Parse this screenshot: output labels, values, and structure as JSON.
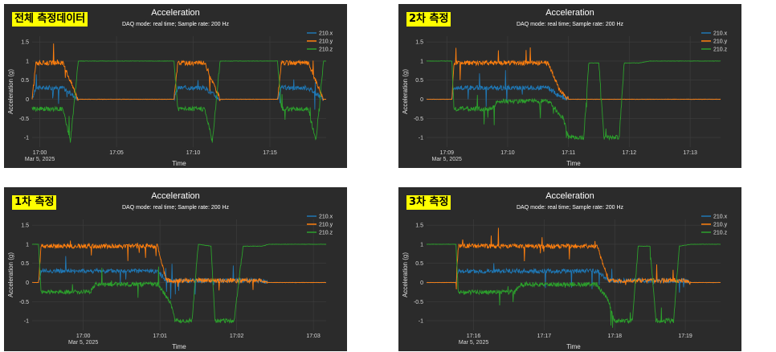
{
  "colors": {
    "x": "#1f77b4",
    "y": "#ff7f0e",
    "z": "#2ca02c",
    "panel_bg": "#2b2b2b",
    "tag_bg": "#ffff00"
  },
  "panels": [
    {
      "tag": "전체 측정데이터",
      "title": "Acceleration",
      "subtitle": "DAQ mode: real time; Sample rate: 200 Hz",
      "xlabel": "Time",
      "ylabel": "Acceleration (g)",
      "date_label": "Mar 5, 2025",
      "xticks": [
        "17:00",
        "17:05",
        "17:10",
        "17:15"
      ],
      "yticks": [
        "1.5",
        "1",
        "0.5",
        "0",
        "-0.5",
        "-1"
      ],
      "legend": [
        "210.x",
        "210.y",
        "210.z"
      ]
    },
    {
      "tag": "2차 측정",
      "title": "Acceleration",
      "subtitle": "DAQ mode: real time; Sample rate: 200 Hz",
      "xlabel": "Time",
      "ylabel": "Acceleration (g)",
      "date_label": "Mar 5, 2025",
      "xticks": [
        "17:09",
        "17:10",
        "17:11",
        "17:12",
        "17:13"
      ],
      "yticks": [
        "1.5",
        "1",
        "0.5",
        "0",
        "-0.5",
        "-1"
      ],
      "legend": [
        "210.x",
        "210.y",
        "210.z"
      ]
    },
    {
      "tag": "1차 측정",
      "title": "Acceleration",
      "subtitle": "DAQ mode: real time; Sample rate: 200 Hz",
      "xlabel": "Time",
      "ylabel": "Acceleration (g)",
      "date_label": "Mar 5, 2025",
      "xticks": [
        "17:00",
        "17:01",
        "17:02",
        "17:03"
      ],
      "yticks": [
        "1.5",
        "1",
        "0.5",
        "0",
        "-0.5",
        "-1"
      ],
      "legend": [
        "210.x",
        "210.y",
        "210.z"
      ]
    },
    {
      "tag": "3차 측정",
      "title": "Acceleration",
      "subtitle": "DAQ mode: real time; Sample rate: 200 Hz",
      "xlabel": "Time",
      "ylabel": "Acceleration (g)",
      "date_label": "Mar 5, 2025",
      "xticks": [
        "17:16",
        "17:17",
        "17:18",
        "17:19"
      ],
      "yticks": [
        "1.5",
        "1",
        "0.5",
        "0",
        "-0.5",
        "-1"
      ],
      "legend": [
        "210.x",
        "210.y",
        "210.z"
      ]
    }
  ],
  "chart_data": [
    {
      "type": "line",
      "title": "Acceleration",
      "xlabel": "Time",
      "ylabel": "Acceleration (g)",
      "ylim": [
        -1.25,
        1.65
      ],
      "x_range": [
        "16:59:30",
        "17:18:40"
      ],
      "grid": true,
      "legend_position": "top-right",
      "series": [
        {
          "name": "210.x",
          "points": [
            [
              "16:59:30",
              0.0
            ],
            [
              "16:59:45",
              0.3
            ],
            [
              "17:01:30",
              0.3
            ],
            [
              "17:02:30",
              0.0
            ],
            [
              "17:08:45",
              0.0
            ],
            [
              "17:09:00",
              0.3
            ],
            [
              "17:10:45",
              0.3
            ],
            [
              "17:11:45",
              0.0
            ],
            [
              "17:15:30",
              0.0
            ],
            [
              "17:15:45",
              0.3
            ],
            [
              "17:17:30",
              0.3
            ],
            [
              "17:18:30",
              0.0
            ],
            [
              "17:18:40",
              0.0
            ]
          ]
        },
        {
          "name": "210.y",
          "points": [
            [
              "16:59:30",
              0.0
            ],
            [
              "16:59:45",
              0.95
            ],
            [
              "17:01:30",
              0.95
            ],
            [
              "17:02:30",
              0.0
            ],
            [
              "17:08:45",
              0.0
            ],
            [
              "17:09:00",
              0.95
            ],
            [
              "17:10:45",
              0.95
            ],
            [
              "17:11:45",
              0.0
            ],
            [
              "17:15:30",
              0.0
            ],
            [
              "17:15:45",
              0.95
            ],
            [
              "17:17:30",
              0.95
            ],
            [
              "17:18:30",
              0.0
            ],
            [
              "17:18:40",
              0.0
            ]
          ]
        },
        {
          "name": "210.z",
          "points": [
            [
              "16:59:30",
              -0.25
            ],
            [
              "17:01:30",
              -0.25
            ],
            [
              "17:02:00",
              -1.1
            ],
            [
              "17:02:30",
              1.0
            ],
            [
              "17:08:45",
              1.0
            ],
            [
              "17:09:00",
              -0.25
            ],
            [
              "17:10:45",
              -0.25
            ],
            [
              "17:11:15",
              -1.1
            ],
            [
              "17:11:45",
              1.0
            ],
            [
              "17:15:30",
              1.0
            ],
            [
              "17:15:45",
              -0.25
            ],
            [
              "17:17:30",
              -0.25
            ],
            [
              "17:18:00",
              -1.1
            ],
            [
              "17:18:30",
              1.0
            ],
            [
              "17:18:40",
              1.0
            ]
          ]
        }
      ]
    },
    {
      "type": "line",
      "title": "Acceleration",
      "xlabel": "Time",
      "ylabel": "Acceleration (g)",
      "ylim": [
        -1.25,
        1.65
      ],
      "x_range": [
        "17:08:40",
        "17:13:30"
      ],
      "grid": true,
      "legend_position": "top-right",
      "series": [
        {
          "name": "210.x",
          "points": [
            [
              "17:08:40",
              0.0
            ],
            [
              "17:09:05",
              0.0
            ],
            [
              "17:09:07",
              0.3
            ],
            [
              "17:10:40",
              0.3
            ],
            [
              "17:10:50",
              0.1
            ],
            [
              "17:11:00",
              0.0
            ],
            [
              "17:12:10",
              0.0
            ],
            [
              "17:12:20",
              0.0
            ],
            [
              "17:13:30",
              0.0
            ]
          ]
        },
        {
          "name": "210.y",
          "points": [
            [
              "17:08:40",
              0.0
            ],
            [
              "17:09:05",
              0.0
            ],
            [
              "17:09:07",
              0.95
            ],
            [
              "17:10:40",
              0.95
            ],
            [
              "17:10:50",
              0.3
            ],
            [
              "17:11:00",
              0.0
            ],
            [
              "17:12:10",
              0.0
            ],
            [
              "17:12:20",
              0.0
            ],
            [
              "17:13:30",
              0.0
            ]
          ]
        },
        {
          "name": "210.z",
          "points": [
            [
              "17:08:40",
              1.0
            ],
            [
              "17:09:05",
              1.0
            ],
            [
              "17:09:07",
              -0.25
            ],
            [
              "17:09:45",
              -0.25
            ],
            [
              "17:09:50",
              -0.05
            ],
            [
              "17:10:40",
              -0.05
            ],
            [
              "17:10:55",
              -0.5
            ],
            [
              "17:11:00",
              -1.0
            ],
            [
              "17:11:15",
              -1.0
            ],
            [
              "17:11:20",
              0.95
            ],
            [
              "17:11:30",
              0.95
            ],
            [
              "17:11:35",
              -1.0
            ],
            [
              "17:11:50",
              -1.0
            ],
            [
              "17:11:55",
              0.95
            ],
            [
              "17:12:10",
              0.95
            ],
            [
              "17:12:20",
              1.0
            ],
            [
              "17:13:30",
              1.0
            ]
          ]
        }
      ]
    },
    {
      "type": "line",
      "title": "Acceleration",
      "xlabel": "Time",
      "ylabel": "Acceleration (g)",
      "ylim": [
        -1.25,
        1.65
      ],
      "x_range": [
        "16:59:20",
        "17:03:10"
      ],
      "grid": true,
      "legend_position": "top-right",
      "series": [
        {
          "name": "210.x",
          "points": [
            [
              "16:59:20",
              0.0
            ],
            [
              "16:59:25",
              0.0
            ],
            [
              "16:59:27",
              0.3
            ],
            [
              "17:00:58",
              0.3
            ],
            [
              "17:01:05",
              0.05
            ],
            [
              "17:02:20",
              0.05
            ],
            [
              "17:02:25",
              0.0
            ],
            [
              "17:03:10",
              0.0
            ]
          ]
        },
        {
          "name": "210.y",
          "points": [
            [
              "16:59:20",
              0.0
            ],
            [
              "16:59:25",
              0.0
            ],
            [
              "16:59:27",
              0.95
            ],
            [
              "17:00:58",
              0.95
            ],
            [
              "17:01:05",
              0.05
            ],
            [
              "17:02:20",
              0.05
            ],
            [
              "17:02:25",
              0.0
            ],
            [
              "17:03:10",
              0.0
            ]
          ]
        },
        {
          "name": "210.z",
          "points": [
            [
              "16:59:20",
              1.0
            ],
            [
              "16:59:25",
              1.0
            ],
            [
              "16:59:27",
              -0.25
            ],
            [
              "17:00:05",
              -0.25
            ],
            [
              "17:00:10",
              -0.05
            ],
            [
              "17:00:58",
              -0.05
            ],
            [
              "17:01:08",
              -0.5
            ],
            [
              "17:01:12",
              -1.0
            ],
            [
              "17:01:25",
              -1.0
            ],
            [
              "17:01:30",
              1.0
            ],
            [
              "17:01:40",
              0.95
            ],
            [
              "17:01:43",
              -1.0
            ],
            [
              "17:01:58",
              -1.0
            ],
            [
              "17:02:05",
              0.95
            ],
            [
              "17:02:20",
              0.95
            ],
            [
              "17:02:25",
              1.0
            ],
            [
              "17:03:10",
              1.0
            ]
          ]
        }
      ]
    },
    {
      "type": "line",
      "title": "Acceleration",
      "xlabel": "Time",
      "ylabel": "Acceleration (g)",
      "ylim": [
        -1.25,
        1.65
      ],
      "x_range": [
        "17:15:20",
        "17:19:30"
      ],
      "grid": true,
      "legend_position": "top-right",
      "series": [
        {
          "name": "210.x",
          "points": [
            [
              "17:15:20",
              0.0
            ],
            [
              "17:15:45",
              0.0
            ],
            [
              "17:15:47",
              0.3
            ],
            [
              "17:17:45",
              0.3
            ],
            [
              "17:17:55",
              0.05
            ],
            [
              "17:19:00",
              0.05
            ],
            [
              "17:19:05",
              0.0
            ],
            [
              "17:19:30",
              0.0
            ]
          ]
        },
        {
          "name": "210.y",
          "points": [
            [
              "17:15:20",
              0.0
            ],
            [
              "17:15:45",
              0.0
            ],
            [
              "17:15:47",
              0.95
            ],
            [
              "17:17:45",
              0.95
            ],
            [
              "17:17:55",
              0.05
            ],
            [
              "17:19:00",
              0.05
            ],
            [
              "17:19:05",
              0.0
            ],
            [
              "17:19:30",
              0.0
            ]
          ]
        },
        {
          "name": "210.z",
          "points": [
            [
              "17:15:20",
              1.0
            ],
            [
              "17:15:45",
              1.0
            ],
            [
              "17:15:47",
              -0.25
            ],
            [
              "17:16:35",
              -0.25
            ],
            [
              "17:16:40",
              -0.05
            ],
            [
              "17:17:45",
              -0.05
            ],
            [
              "17:17:55",
              -0.5
            ],
            [
              "17:18:00",
              -1.0
            ],
            [
              "17:18:15",
              -1.0
            ],
            [
              "17:18:20",
              0.95
            ],
            [
              "17:18:30",
              0.95
            ],
            [
              "17:18:35",
              -1.0
            ],
            [
              "17:18:50",
              -1.0
            ],
            [
              "17:18:55",
              0.95
            ],
            [
              "17:19:05",
              1.0
            ],
            [
              "17:19:30",
              1.0
            ]
          ]
        }
      ]
    }
  ]
}
